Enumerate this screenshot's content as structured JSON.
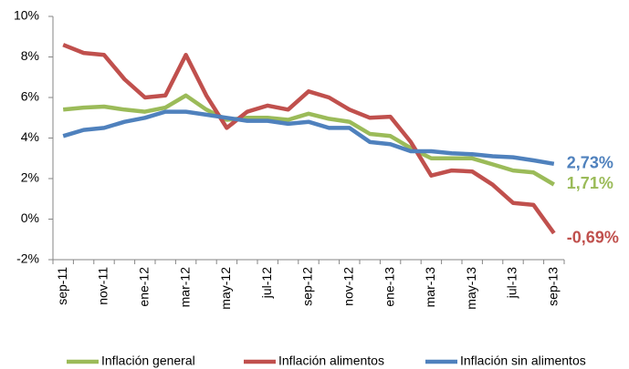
{
  "chart_data": {
    "type": "line",
    "categories": [
      "sep-11",
      null,
      "nov-11",
      null,
      "ene-12",
      null,
      "mar-12",
      null,
      "may-12",
      null,
      "jul-12",
      null,
      "sep-12",
      null,
      "nov-12",
      null,
      "ene-13",
      null,
      "mar-13",
      null,
      "may-13",
      null,
      "jul-13",
      null,
      "sep-13"
    ],
    "series": [
      {
        "name": "Inflación general",
        "color": "#9bbb59",
        "values": [
          5.4,
          5.5,
          5.55,
          5.4,
          5.3,
          5.5,
          6.1,
          5.4,
          4.9,
          5.0,
          5.0,
          4.9,
          5.2,
          4.95,
          4.8,
          4.2,
          4.1,
          3.5,
          3.0,
          3.0,
          3.0,
          2.7,
          2.4,
          2.3,
          1.71
        ],
        "value_labels": [
          null,
          null,
          null,
          null,
          null,
          null,
          null,
          null,
          null,
          null,
          null,
          null,
          null,
          null,
          null,
          null,
          null,
          null,
          null,
          null,
          null,
          null,
          null,
          null,
          "1,71%"
        ]
      },
      {
        "name": "Inflación alimentos",
        "color": "#c0504d",
        "values": [
          8.6,
          8.2,
          8.1,
          6.9,
          6.0,
          6.1,
          8.1,
          6.1,
          4.5,
          5.3,
          5.6,
          5.4,
          6.3,
          6.0,
          5.4,
          5.0,
          5.05,
          3.8,
          2.15,
          2.4,
          2.35,
          1.7,
          0.8,
          0.7,
          -0.69
        ],
        "value_labels": [
          null,
          null,
          null,
          null,
          null,
          null,
          null,
          null,
          null,
          null,
          null,
          null,
          null,
          null,
          null,
          null,
          null,
          null,
          null,
          null,
          null,
          null,
          null,
          null,
          "-0,69%"
        ]
      },
      {
        "name": "Inflación sin alimentos",
        "color": "#4f81bd",
        "values": [
          4.1,
          4.4,
          4.5,
          4.8,
          5.0,
          5.3,
          5.3,
          5.15,
          5.0,
          4.85,
          4.85,
          4.7,
          4.8,
          4.5,
          4.5,
          3.8,
          3.7,
          3.35,
          3.35,
          3.25,
          3.2,
          3.1,
          3.05,
          2.9,
          2.73
        ],
        "value_labels": [
          null,
          null,
          null,
          null,
          null,
          null,
          null,
          null,
          null,
          null,
          null,
          null,
          null,
          null,
          null,
          null,
          null,
          null,
          null,
          null,
          null,
          null,
          null,
          null,
          "2,73%"
        ]
      }
    ],
    "ylim": [
      -2,
      10
    ],
    "yticks": [
      {
        "value": -2,
        "label": "-2%"
      },
      {
        "value": 0,
        "label": "0%"
      },
      {
        "value": 2,
        "label": "2%"
      },
      {
        "value": 4,
        "label": "4%"
      },
      {
        "value": 6,
        "label": "6%"
      },
      {
        "value": 8,
        "label": "8%"
      },
      {
        "value": 10,
        "label": "10%"
      }
    ],
    "grid": false,
    "legend": "bottom"
  }
}
